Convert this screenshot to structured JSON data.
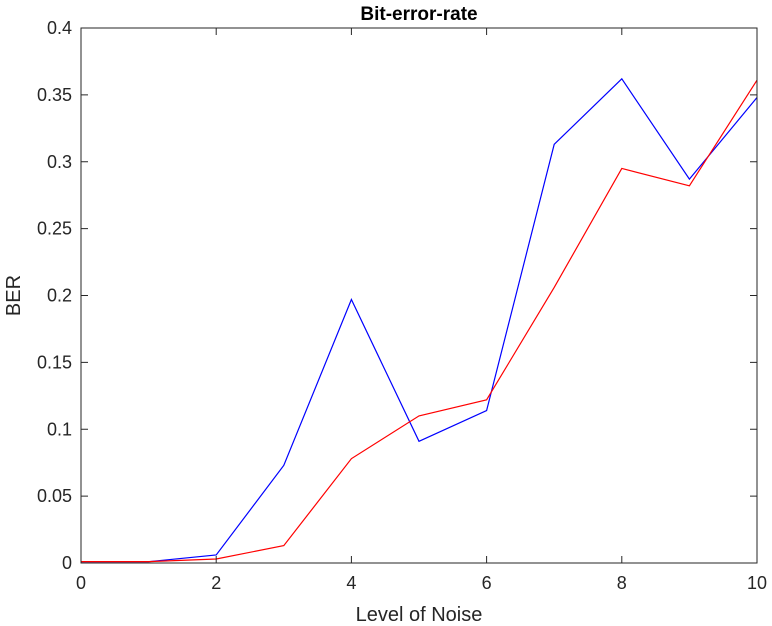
{
  "chart_data": {
    "type": "line",
    "title": "Bit-error-rate",
    "xlabel": "Level of Noise",
    "ylabel": "BER",
    "xlim": [
      0,
      10
    ],
    "ylim": [
      0,
      0.4
    ],
    "xticks": [
      0,
      2,
      4,
      6,
      8,
      10
    ],
    "xtick_labels": [
      "0",
      "2",
      "4",
      "6",
      "8",
      "10"
    ],
    "yticks": [
      0,
      0.05,
      0.1,
      0.15,
      0.2,
      0.25,
      0.3,
      0.35,
      0.4
    ],
    "ytick_labels": [
      "0",
      "0.05",
      "0.1",
      "0.15",
      "0.2",
      "0.25",
      "0.3",
      "0.35",
      "0.4"
    ],
    "grid": false,
    "x": [
      0,
      1,
      2,
      3,
      4,
      5,
      6,
      7,
      8,
      9,
      10
    ],
    "series": [
      {
        "color": "#0000ff",
        "values": [
          0.001,
          0.001,
          0.006,
          0.073,
          0.197,
          0.091,
          0.114,
          0.313,
          0.362,
          0.287,
          0.348
        ]
      },
      {
        "color": "#ff0000",
        "values": [
          0.001,
          0.001,
          0.003,
          0.013,
          0.078,
          0.11,
          0.122,
          0.206,
          0.295,
          0.282,
          0.361
        ]
      }
    ]
  }
}
